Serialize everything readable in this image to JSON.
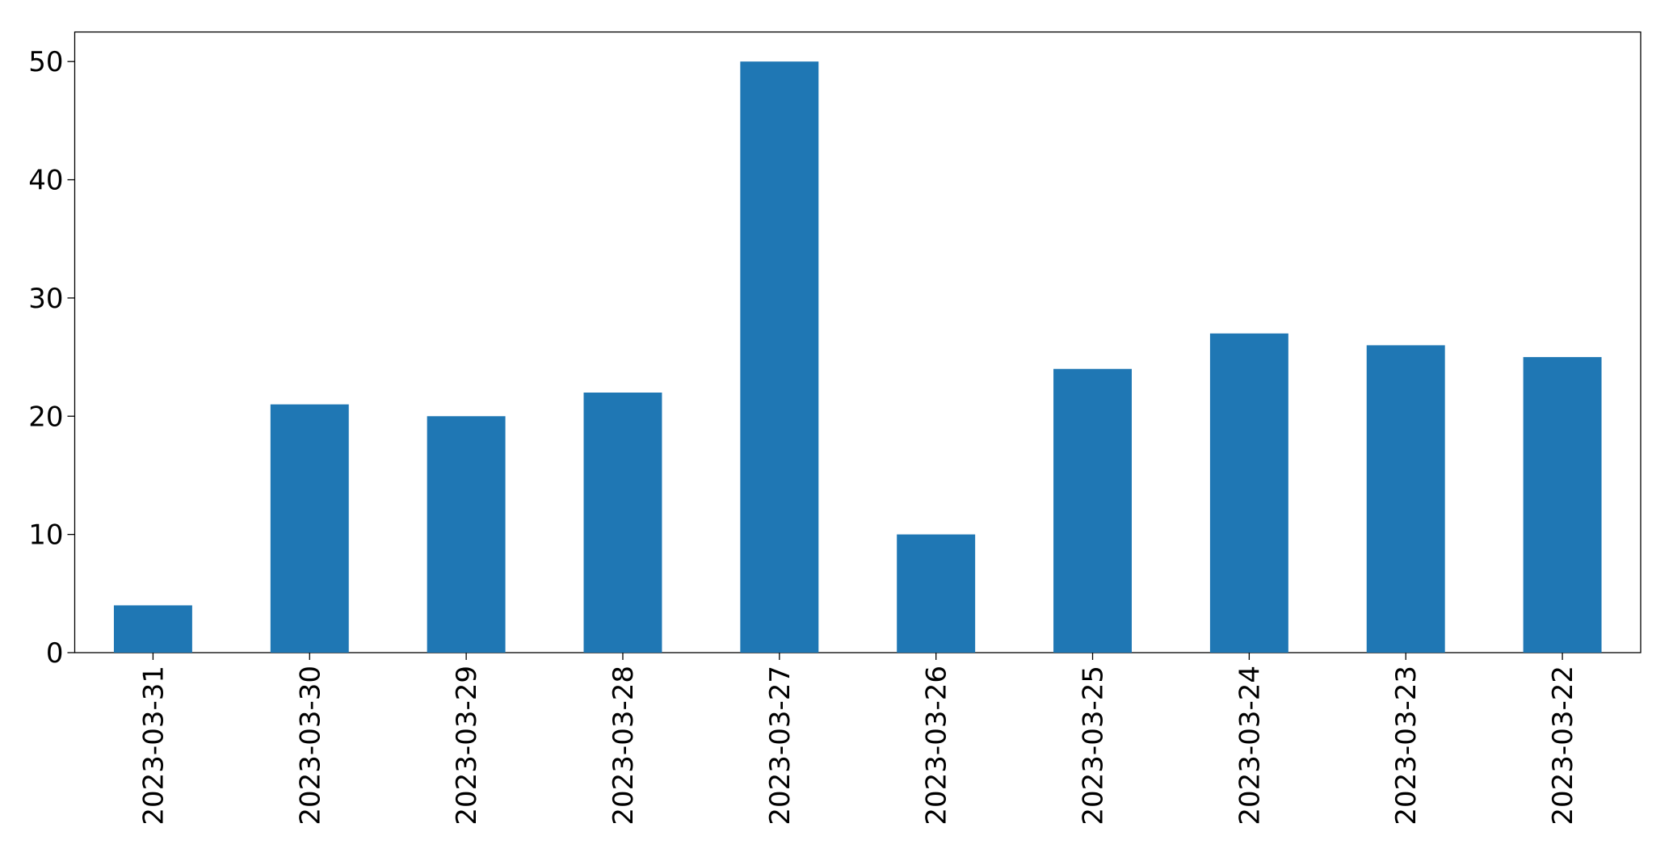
{
  "chart_data": {
    "type": "bar",
    "categories": [
      "2023-03-31",
      "2023-03-30",
      "2023-03-29",
      "2023-03-28",
      "2023-03-27",
      "2023-03-26",
      "2023-03-25",
      "2023-03-24",
      "2023-03-23",
      "2023-03-22"
    ],
    "values": [
      4,
      21,
      20,
      22,
      50,
      10,
      24,
      27,
      26,
      25
    ],
    "color": "#1f77b4",
    "ylim": [
      0,
      52.5
    ],
    "yticks": [
      0,
      10,
      20,
      30,
      40,
      50
    ],
    "grid": false
  }
}
